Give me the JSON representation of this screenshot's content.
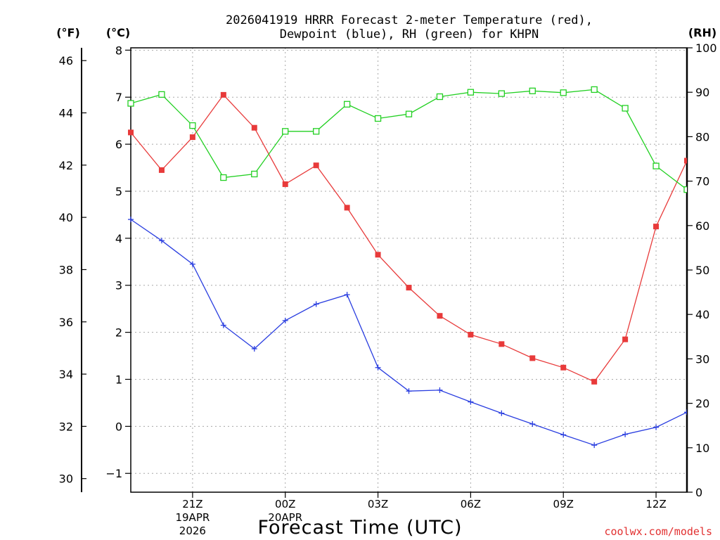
{
  "chart_data": {
    "type": "line",
    "station": "KHPN",
    "title_line1": "2026041919 HRRR Forecast 2-meter Temperature (red),",
    "title_line2": "Dewpoint (blue), RH (green) for KHPN",
    "xlabel": "Forecast Time (UTC)",
    "credit": "coolwx.com/models",
    "units": {
      "f": "(°F)",
      "c": "(°C)",
      "rh": "(RH)"
    },
    "x_hours": [
      19,
      20,
      21,
      22,
      23,
      24,
      25,
      26,
      27,
      28,
      29,
      30,
      31,
      32,
      33,
      34,
      35,
      36,
      37
    ],
    "x_ticks": [
      {
        "hour": 21,
        "lines": [
          "21Z",
          "19APR",
          "2026"
        ]
      },
      {
        "hour": 24,
        "lines": [
          "00Z",
          "20APR"
        ]
      },
      {
        "hour": 27,
        "lines": [
          "03Z"
        ]
      },
      {
        "hour": 30,
        "lines": [
          "06Z"
        ]
      },
      {
        "hour": 33,
        "lines": [
          "09Z"
        ]
      },
      {
        "hour": 36,
        "lines": [
          "12Z"
        ]
      }
    ],
    "xlim": [
      19,
      37
    ],
    "c_axis": {
      "ylim": [
        -1.4,
        8.05
      ],
      "ticks": [
        -1,
        0,
        1,
        2,
        3,
        4,
        5,
        6,
        7,
        8
      ]
    },
    "f_axis": {
      "ticks": [
        30,
        32,
        34,
        36,
        38,
        40,
        42,
        44,
        46
      ]
    },
    "rh_axis": {
      "ylim": [
        0,
        100
      ],
      "ticks": [
        0,
        10,
        20,
        30,
        40,
        50,
        60,
        70,
        80,
        90,
        100
      ]
    },
    "series": [
      {
        "name": "Temperature",
        "axis": "c",
        "color": "#e83a3a",
        "marker": "filled-square",
        "values": [
          6.25,
          5.45,
          6.15,
          7.05,
          6.35,
          5.15,
          5.55,
          4.65,
          3.65,
          2.95,
          2.35,
          1.95,
          1.75,
          1.45,
          1.25,
          0.95,
          1.85,
          4.25,
          5.65
        ]
      },
      {
        "name": "Dewpoint",
        "axis": "c",
        "color": "#2a3ee0",
        "marker": "plus",
        "values": [
          4.4,
          3.95,
          3.45,
          2.15,
          1.65,
          2.25,
          2.6,
          2.8,
          1.25,
          0.75,
          0.77,
          0.52,
          0.28,
          0.05,
          -0.18,
          -0.4,
          -0.17,
          -0.02,
          0.3
        ]
      },
      {
        "name": "RH",
        "axis": "rh",
        "color": "#22d022",
        "marker": "open-square",
        "values": [
          87.5,
          89.5,
          82.5,
          70.8,
          71.6,
          81.2,
          81.2,
          87.3,
          84.1,
          85.1,
          89.0,
          90.0,
          89.7,
          90.3,
          89.9,
          90.6,
          86.4,
          73.4,
          68.1
        ]
      }
    ]
  }
}
